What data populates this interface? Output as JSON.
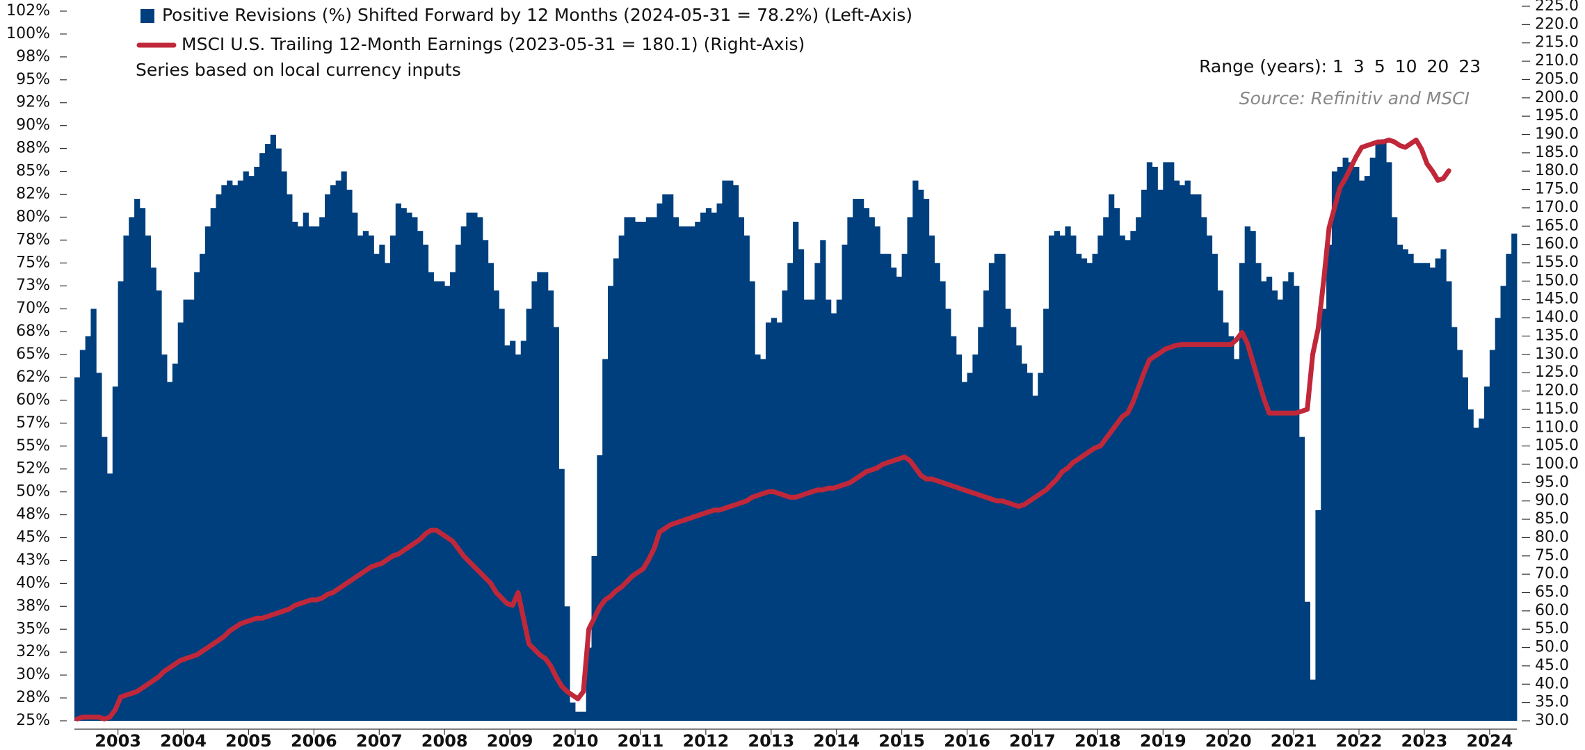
{
  "chart_data": {
    "type": "bar",
    "note": "Series based on local currency inputs",
    "source": "Source: Refinitiv and MSCI",
    "range_selector": {
      "label": "Range (years):",
      "options": [
        "1",
        "3",
        "5",
        "10",
        "20",
        "23"
      ]
    },
    "categories": [
      null,
      null,
      null,
      null,
      null,
      null,
      null,
      null,
      "2003",
      null,
      null,
      null,
      null,
      null,
      null,
      null,
      null,
      null,
      null,
      null,
      "2004",
      null,
      null,
      null,
      null,
      null,
      null,
      null,
      null,
      null,
      null,
      null,
      "2005",
      null,
      null,
      null,
      null,
      null,
      null,
      null,
      null,
      null,
      null,
      null,
      "2006",
      null,
      null,
      null,
      null,
      null,
      null,
      null,
      null,
      null,
      null,
      null,
      "2007",
      null,
      null,
      null,
      null,
      null,
      null,
      null,
      null,
      null,
      null,
      null,
      "2008",
      null,
      null,
      null,
      null,
      null,
      null,
      null,
      null,
      null,
      null,
      null,
      "2009",
      null,
      null,
      null,
      null,
      null,
      null,
      null,
      null,
      null,
      null,
      null,
      "2010",
      null,
      null,
      null,
      null,
      null,
      null,
      null,
      null,
      null,
      null,
      null,
      "2011",
      null,
      null,
      null,
      null,
      null,
      null,
      null,
      null,
      null,
      null,
      null,
      "2012",
      null,
      null,
      null,
      null,
      null,
      null,
      null,
      null,
      null,
      null,
      null,
      "2013",
      null,
      null,
      null,
      null,
      null,
      null,
      null,
      null,
      null,
      null,
      null,
      "2014",
      null,
      null,
      null,
      null,
      null,
      null,
      null,
      null,
      null,
      null,
      null,
      "2015",
      null,
      null,
      null,
      null,
      null,
      null,
      null,
      null,
      null,
      null,
      null,
      "2016",
      null,
      null,
      null,
      null,
      null,
      null,
      null,
      null,
      null,
      null,
      null,
      "2017",
      null,
      null,
      null,
      null,
      null,
      null,
      null,
      null,
      null,
      null,
      null,
      "2018",
      null,
      null,
      null,
      null,
      null,
      null,
      null,
      null,
      null,
      null,
      null,
      "2019",
      null,
      null,
      null,
      null,
      null,
      null,
      null,
      null,
      null,
      null,
      null,
      "2020",
      null,
      null,
      null,
      null,
      null,
      null,
      null,
      null,
      null,
      null,
      null,
      "2021",
      null,
      null,
      null,
      null,
      null,
      null,
      null,
      null,
      null,
      null,
      null,
      "2022",
      null,
      null,
      null,
      null,
      null,
      null,
      null,
      null,
      null,
      null,
      null,
      "2023",
      null,
      null,
      null,
      null,
      null,
      null,
      null,
      null,
      null,
      null,
      null,
      "2024",
      null,
      null,
      null,
      null
    ],
    "series": [
      {
        "name": "Positive Revisions (%)  Shifted Forward by 12 Months (2024-05-31 = 78.2%) (Left-Axis)",
        "type": "bar",
        "color": "#003f7d",
        "values": [
          62.5,
          65.5,
          67,
          70,
          63,
          56,
          52,
          61.5,
          73,
          78,
          80,
          82,
          81,
          78,
          74.5,
          72,
          65,
          62,
          64,
          68.5,
          71,
          71,
          74,
          76,
          79,
          81,
          82.5,
          83.5,
          84,
          83.5,
          84,
          85,
          84.5,
          85.5,
          87,
          88,
          89,
          87.5,
          85,
          82.5,
          79.5,
          79,
          80.5,
          79,
          79,
          80,
          82.5,
          83.5,
          84,
          85,
          83,
          80.5,
          78,
          78.5,
          78,
          76,
          77,
          75,
          78,
          81.5,
          81,
          80.5,
          80,
          78.5,
          77,
          74,
          73,
          73,
          72.5,
          74,
          77,
          79,
          80.5,
          80.5,
          80,
          77.5,
          75,
          72,
          70,
          66,
          66.5,
          65,
          66.5,
          70,
          73,
          74,
          74,
          72,
          68,
          52.5,
          37.5,
          27,
          26,
          26,
          33,
          43,
          54,
          64.5,
          72.5,
          75.5,
          78,
          80,
          80,
          79.5,
          79.5,
          80,
          80,
          81.5,
          82.5,
          82.5,
          80,
          79,
          79,
          79,
          79.5,
          80.5,
          81,
          80.5,
          81.5,
          84,
          84,
          83.5,
          80,
          78,
          73,
          65,
          64.5,
          68.5,
          69,
          68.5,
          72,
          75,
          79.5,
          76.5,
          71,
          71,
          75,
          77.5,
          71,
          69.5,
          71,
          77,
          80,
          82,
          82,
          81,
          80,
          79,
          76,
          76,
          74.5,
          73.5,
          76,
          80,
          84,
          83,
          82,
          78,
          75,
          73,
          70,
          67,
          65,
          62,
          63,
          65,
          68,
          72,
          75,
          76,
          76,
          70,
          68,
          66,
          64,
          63,
          60.5,
          63,
          70,
          78,
          78.5,
          78,
          79,
          78,
          76,
          75.5,
          75,
          76,
          78,
          80,
          82.5,
          81,
          78,
          77.5,
          78.5,
          80,
          83,
          86,
          85.5,
          83,
          86,
          86,
          84,
          83.5,
          84,
          82.5,
          82.5,
          80,
          78,
          76,
          72,
          68.5,
          67,
          64.5,
          75,
          79,
          78.5,
          75,
          73,
          73.5,
          72,
          71,
          73,
          74,
          72.5,
          56,
          38,
          29.5,
          48,
          70,
          77,
          85,
          85.5,
          86.5,
          86,
          85.5,
          84,
          84.5,
          86.5,
          88,
          88.5,
          86,
          80,
          77,
          76.5,
          76,
          75,
          75,
          75,
          74.5,
          75.5,
          76.5,
          73,
          68,
          65.5,
          62.5,
          59,
          57,
          58,
          61.5,
          65.5,
          69,
          72.5,
          76,
          78.2
        ]
      },
      {
        "name": "MSCI U.S.  Trailing 12-Month Earnings (2023-05-31 = 180.1) (Right-Axis)",
        "type": "line",
        "axis": "y2",
        "color": "#c0283a",
        "values": [
          30.5,
          31,
          31,
          31,
          31,
          30.5,
          31,
          33,
          36.5,
          37,
          37.5,
          38,
          39,
          40,
          41,
          42,
          43.5,
          44.5,
          45.5,
          46.5,
          47,
          47.5,
          48,
          49,
          50,
          51,
          52,
          53,
          54.5,
          55.5,
          56.5,
          57,
          57.5,
          58,
          58,
          58.5,
          59,
          59.5,
          60,
          60.5,
          61.5,
          62,
          62.5,
          63,
          63,
          63.5,
          64.5,
          65,
          66,
          67,
          68,
          69,
          70,
          71,
          72,
          72.5,
          73,
          74,
          75,
          75.5,
          76.5,
          77.5,
          78.5,
          79.5,
          81,
          82,
          82,
          81,
          80,
          79,
          77,
          75,
          73.5,
          72,
          70.5,
          69,
          67.5,
          65,
          63.5,
          62,
          61.5,
          65,
          58,
          51,
          49.5,
          48,
          47,
          45,
          42,
          39.5,
          38,
          37,
          36,
          38,
          55,
          58,
          61,
          63,
          64,
          65.5,
          66.5,
          68,
          69.5,
          70.5,
          71.5,
          74,
          77,
          81.5,
          82.5,
          83.5,
          84,
          84.5,
          85,
          85.5,
          86,
          86.5,
          87,
          87.5,
          87.5,
          88,
          88.5,
          89,
          89.5,
          90,
          91,
          91.5,
          92,
          92.5,
          92.5,
          92,
          91.5,
          91,
          91,
          91.5,
          92,
          92.5,
          93,
          93,
          93.5,
          93.5,
          94,
          94.5,
          95,
          96,
          97,
          98,
          98.5,
          99,
          100,
          100.5,
          101,
          101.5,
          102,
          101,
          99,
          97,
          96,
          96,
          95.5,
          95,
          94.5,
          94,
          93.5,
          93,
          92.5,
          92,
          91.5,
          91,
          90.5,
          90,
          90,
          89.5,
          89,
          88.5,
          89,
          90,
          91,
          92,
          93,
          94.5,
          96,
          98,
          99,
          100.5,
          101.5,
          102.5,
          103.5,
          104.5,
          105,
          107,
          109,
          111,
          113,
          114,
          117,
          121,
          125,
          128.5,
          129.5,
          130.5,
          131.5,
          132,
          132.5,
          132.7,
          132.7,
          132.7,
          132.7,
          132.7,
          132.7,
          132.7,
          132.7,
          132.7,
          132.7,
          134,
          136,
          133,
          128,
          123,
          118,
          114,
          114,
          114,
          114,
          114,
          114,
          114.5,
          115,
          130,
          137,
          150,
          164.5,
          170,
          175.5,
          178,
          181,
          184,
          186.5,
          187,
          187.5,
          188,
          188,
          188.5,
          188,
          187,
          186.5,
          187.5,
          188.5,
          186,
          182,
          180,
          177.5,
          178,
          180.1,
          null,
          null,
          null,
          null,
          null,
          null,
          null,
          null,
          null,
          null,
          null,
          null
        ]
      }
    ],
    "ylim": [
      25,
      102.5
    ],
    "yticks": [
      {
        "value": 25,
        "label": "25%"
      },
      {
        "value": 27.5,
        "label": "28%"
      },
      {
        "value": 30,
        "label": "30%"
      },
      {
        "value": 32.5,
        "label": "32%"
      },
      {
        "value": 35,
        "label": "35%"
      },
      {
        "value": 37.5,
        "label": "38%"
      },
      {
        "value": 40,
        "label": "40%"
      },
      {
        "value": 42.5,
        "label": "43%"
      },
      {
        "value": 45,
        "label": "45%"
      },
      {
        "value": 47.5,
        "label": "48%"
      },
      {
        "value": 50,
        "label": "50%"
      },
      {
        "value": 52.5,
        "label": "52%"
      },
      {
        "value": 55,
        "label": "55%"
      },
      {
        "value": 57.5,
        "label": "57%"
      },
      {
        "value": 60,
        "label": "60%"
      },
      {
        "value": 62.5,
        "label": "62%"
      },
      {
        "value": 65,
        "label": "65%"
      },
      {
        "value": 67.5,
        "label": "68%"
      },
      {
        "value": 70,
        "label": "70%"
      },
      {
        "value": 72.5,
        "label": "73%"
      },
      {
        "value": 75,
        "label": "75%"
      },
      {
        "value": 77.5,
        "label": "78%"
      },
      {
        "value": 80,
        "label": "80%"
      },
      {
        "value": 82.5,
        "label": "82%"
      },
      {
        "value": 85,
        "label": "85%"
      },
      {
        "value": 87.5,
        "label": "88%"
      },
      {
        "value": 90,
        "label": "90%"
      },
      {
        "value": 92.5,
        "label": "92%"
      },
      {
        "value": 95,
        "label": "95%"
      },
      {
        "value": 97.5,
        "label": "98%"
      },
      {
        "value": 100,
        "label": "100%"
      },
      {
        "value": 102.5,
        "label": "102%"
      }
    ],
    "y2lim": [
      30,
      225
    ],
    "y2ticks": [
      {
        "value": 30,
        "label": "30.0"
      },
      {
        "value": 35,
        "label": "35.0"
      },
      {
        "value": 40,
        "label": "40.0"
      },
      {
        "value": 45,
        "label": "45.0"
      },
      {
        "value": 50,
        "label": "50.0"
      },
      {
        "value": 55,
        "label": "55.0"
      },
      {
        "value": 60,
        "label": "60.0"
      },
      {
        "value": 65,
        "label": "65.0"
      },
      {
        "value": 70,
        "label": "70.0"
      },
      {
        "value": 75,
        "label": "75.0"
      },
      {
        "value": 80,
        "label": "80.0"
      },
      {
        "value": 85,
        "label": "85.0"
      },
      {
        "value": 90,
        "label": "90.0"
      },
      {
        "value": 95,
        "label": "95.0"
      },
      {
        "value": 100,
        "label": "100.0"
      },
      {
        "value": 105,
        "label": "105.0"
      },
      {
        "value": 110,
        "label": "110.0"
      },
      {
        "value": 115,
        "label": "115.0"
      },
      {
        "value": 120,
        "label": "120.0"
      },
      {
        "value": 125,
        "label": "125.0"
      },
      {
        "value": 130,
        "label": "130.0"
      },
      {
        "value": 135,
        "label": "135.0"
      },
      {
        "value": 140,
        "label": "140.0"
      },
      {
        "value": 145,
        "label": "145.0"
      },
      {
        "value": 150,
        "label": "150.0"
      },
      {
        "value": 155,
        "label": "155.0"
      },
      {
        "value": 160,
        "label": "160.0"
      },
      {
        "value": 165,
        "label": "165.0"
      },
      {
        "value": 170,
        "label": "170.0"
      },
      {
        "value": 175,
        "label": "175.0"
      },
      {
        "value": 180,
        "label": "180.0"
      },
      {
        "value": 185,
        "label": "185.0"
      },
      {
        "value": 190,
        "label": "190.0"
      },
      {
        "value": 195,
        "label": "195.0"
      },
      {
        "value": 200,
        "label": "200.0"
      },
      {
        "value": 205,
        "label": "205.0"
      },
      {
        "value": 210,
        "label": "210.0"
      },
      {
        "value": 215,
        "label": "215.0"
      },
      {
        "value": 220,
        "label": "220.0"
      },
      {
        "value": 225,
        "label": "225.0"
      }
    ],
    "grid": false
  }
}
